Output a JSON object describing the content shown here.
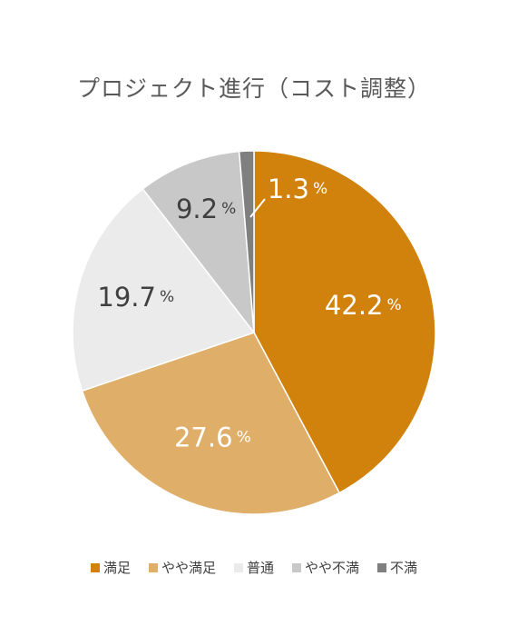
{
  "chart_data": {
    "type": "pie",
    "title": "プロジェクト進行（コスト調整）",
    "categories": [
      "満足",
      "やや満足",
      "普通",
      "やや不満",
      "不満"
    ],
    "values": [
      42.2,
      27.6,
      19.7,
      9.2,
      1.3
    ],
    "labels": [
      "42.2",
      "27.6",
      "19.7",
      "9.2",
      "1.3"
    ],
    "unit": "%",
    "colors": [
      "#d0820c",
      "#dfaf69",
      "#ebebeb",
      "#c8c8c8",
      "#7f7f7f"
    ],
    "label_colors": [
      "#ffffff",
      "#ffffff",
      "#404040",
      "#404040",
      "#ffffff"
    ],
    "legend_position": "bottom",
    "start_angle": "12 o'clock",
    "direction": "clockwise"
  }
}
